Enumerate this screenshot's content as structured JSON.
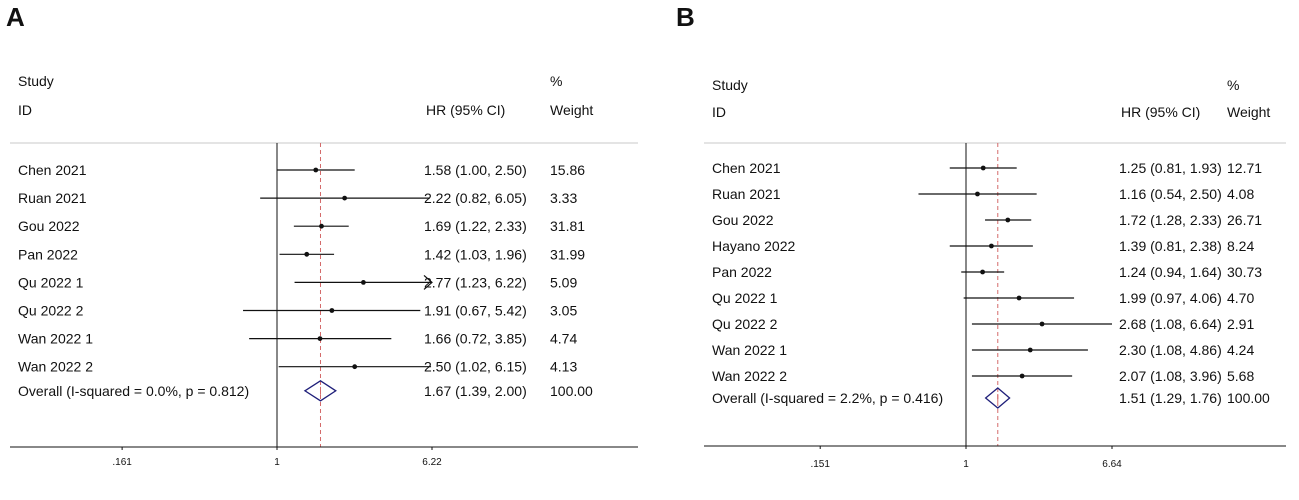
{
  "panels": [
    {
      "letter": "A",
      "header": {
        "study": "Study",
        "id": "ID",
        "hr": "HR (95% CI)",
        "pct": "%",
        "weight": "Weight"
      },
      "axis": {
        "scale": "log",
        "ticks": [
          0.161,
          1,
          6.22
        ],
        "tick_labels": [
          ".161",
          "1",
          "6.22"
        ],
        "null_line": 1,
        "overall_ref": 1.67
      },
      "chart_data": {
        "type": "forest",
        "studies": [
          {
            "name": "Chen 2021",
            "hr": 1.58,
            "lo": 1.0,
            "hi": 2.5,
            "ci_text": "1.58 (1.00, 2.50)",
            "weight_text": "15.86",
            "arrow": false
          },
          {
            "name": "Ruan 2021",
            "hr": 2.22,
            "lo": 0.82,
            "hi": 6.05,
            "ci_text": "2.22 (0.82, 6.05)",
            "weight_text": "3.33",
            "arrow": false
          },
          {
            "name": "Gou 2022",
            "hr": 1.69,
            "lo": 1.22,
            "hi": 2.33,
            "ci_text": "1.69 (1.22, 2.33)",
            "weight_text": "31.81",
            "arrow": false
          },
          {
            "name": "Pan 2022",
            "hr": 1.42,
            "lo": 1.03,
            "hi": 1.96,
            "ci_text": "1.42 (1.03, 1.96)",
            "weight_text": "31.99",
            "arrow": false
          },
          {
            "name": "Qu 2022 1",
            "hr": 2.77,
            "lo": 1.23,
            "hi": 6.22,
            "ci_text": "2.77 (1.23, 6.22)",
            "weight_text": "5.09",
            "arrow": true
          },
          {
            "name": "Qu 2022 2",
            "hr": 1.91,
            "lo": 0.67,
            "hi": 5.42,
            "ci_text": "1.91 (0.67, 5.42)",
            "weight_text": "3.05",
            "arrow": false
          },
          {
            "name": "Wan 2022 1",
            "hr": 1.66,
            "lo": 0.72,
            "hi": 3.85,
            "ci_text": "1.66 (0.72, 3.85)",
            "weight_text": "4.74",
            "arrow": false
          },
          {
            "name": "Wan 2022 2",
            "hr": 2.5,
            "lo": 1.02,
            "hi": 6.15,
            "ci_text": "2.50 (1.02, 6.15)",
            "weight_text": "4.13",
            "arrow": false
          }
        ],
        "overall": {
          "label": "Overall  (I-squared = 0.0%, p = 0.812)",
          "hr": 1.67,
          "lo": 1.39,
          "hi": 2.0,
          "ci_text": "1.67 (1.39, 2.00)",
          "weight_text": "100.00"
        }
      }
    },
    {
      "letter": "B",
      "header": {
        "study": "Study",
        "id": "ID",
        "hr": "HR (95% CI)",
        "pct": "%",
        "weight": "Weight"
      },
      "axis": {
        "scale": "log",
        "ticks": [
          0.151,
          1,
          6.64
        ],
        "tick_labels": [
          ".151",
          "1",
          "6.64"
        ],
        "null_line": 1,
        "overall_ref": 1.51
      },
      "chart_data": {
        "type": "forest",
        "studies": [
          {
            "name": "Chen 2021",
            "hr": 1.25,
            "lo": 0.81,
            "hi": 1.93,
            "ci_text": "1.25 (0.81, 1.93)",
            "weight_text": "12.71",
            "arrow": false
          },
          {
            "name": "Ruan 2021",
            "hr": 1.16,
            "lo": 0.54,
            "hi": 2.5,
            "ci_text": "1.16 (0.54, 2.50)",
            "weight_text": "4.08",
            "arrow": false
          },
          {
            "name": "Gou 2022",
            "hr": 1.72,
            "lo": 1.28,
            "hi": 2.33,
            "ci_text": "1.72 (1.28, 2.33)",
            "weight_text": "26.71",
            "arrow": false
          },
          {
            "name": "Hayano 2022",
            "hr": 1.39,
            "lo": 0.81,
            "hi": 2.38,
            "ci_text": "1.39 (0.81, 2.38)",
            "weight_text": "8.24",
            "arrow": false
          },
          {
            "name": "Pan 2022",
            "hr": 1.24,
            "lo": 0.94,
            "hi": 1.64,
            "ci_text": "1.24 (0.94, 1.64)",
            "weight_text": "30.73",
            "arrow": false
          },
          {
            "name": "Qu 2022 1",
            "hr": 1.99,
            "lo": 0.97,
            "hi": 4.06,
            "ci_text": "1.99 (0.97, 4.06)",
            "weight_text": "4.70",
            "arrow": false
          },
          {
            "name": "Qu 2022 2",
            "hr": 2.68,
            "lo": 1.08,
            "hi": 6.64,
            "ci_text": "2.68 (1.08, 6.64)",
            "weight_text": "2.91",
            "arrow": false
          },
          {
            "name": "Wan 2022 1",
            "hr": 2.3,
            "lo": 1.08,
            "hi": 4.86,
            "ci_text": "2.30 (1.08, 4.86)",
            "weight_text": "4.24",
            "arrow": false
          },
          {
            "name": "Wan 2022 2",
            "hr": 2.07,
            "lo": 1.08,
            "hi": 3.96,
            "ci_text": "2.07 (1.08, 3.96)",
            "weight_text": "5.68",
            "arrow": false
          }
        ],
        "overall": {
          "label": "Overall  (I-squared = 2.2%, p = 0.416)",
          "hr": 1.51,
          "lo": 1.29,
          "hi": 1.76,
          "ci_text": "1.51 (1.29, 1.76)",
          "weight_text": "100.00"
        }
      }
    }
  ],
  "colors": {
    "ink": "#111111",
    "reference_line": "#d46a6a",
    "diamond": "#1f1f7a",
    "rule": "#c8c8c8"
  }
}
